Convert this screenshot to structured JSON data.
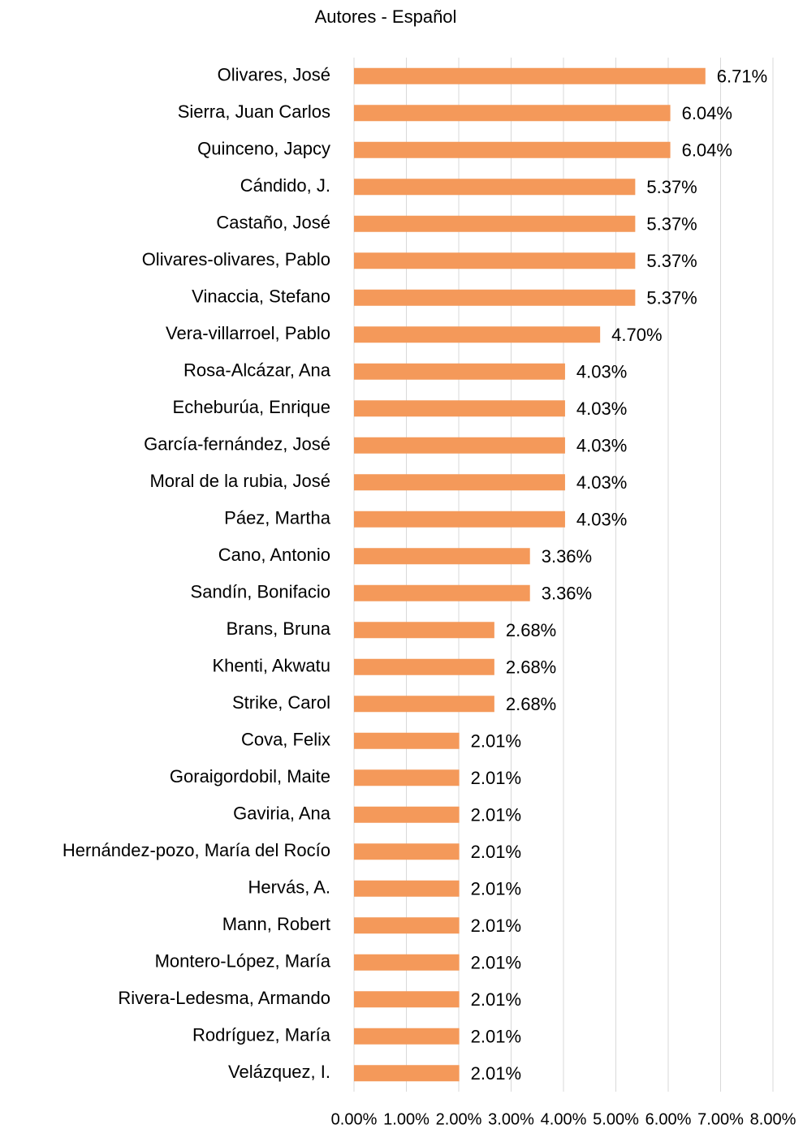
{
  "chart_data": {
    "type": "barh",
    "title": "Autores - Español",
    "categories": [
      "Olivares, José",
      "Sierra, Juan Carlos",
      "Quinceno, Japcy",
      "Cándido, J.",
      "Castaño, José",
      "Olivares-olivares, Pablo",
      "Vinaccia, Stefano",
      "Vera-villarroel, Pablo",
      "Rosa-Alcázar, Ana",
      "Echeburúa, Enrique",
      "García-fernández, José",
      "Moral de la rubia, José",
      "Páez, Martha",
      "Cano, Antonio",
      "Sandín, Bonifacio",
      "Brans, Bruna",
      "Khenti, Akwatu",
      "Strike, Carol",
      "Cova, Felix",
      "Goraigordobil, Maite",
      "Gaviria, Ana",
      "Hernández-pozo, María del Rocío",
      "Hervás, A.",
      "Mann, Robert",
      "Montero-López, María",
      "Rivera-Ledesma, Armando",
      "Rodríguez, María",
      "Velázquez, I."
    ],
    "values": [
      6.71,
      6.04,
      6.04,
      5.37,
      5.37,
      5.37,
      5.37,
      4.7,
      4.03,
      4.03,
      4.03,
      4.03,
      4.03,
      3.36,
      3.36,
      2.68,
      2.68,
      2.68,
      2.01,
      2.01,
      2.01,
      2.01,
      2.01,
      2.01,
      2.01,
      2.01,
      2.01,
      2.01
    ],
    "value_labels": [
      "6.71%",
      "6.04%",
      "6.04%",
      "5.37%",
      "5.37%",
      "5.37%",
      "5.37%",
      "4.70%",
      "4.03%",
      "4.03%",
      "4.03%",
      "4.03%",
      "4.03%",
      "3.36%",
      "3.36%",
      "2.68%",
      "2.68%",
      "2.68%",
      "2.01%",
      "2.01%",
      "2.01%",
      "2.01%",
      "2.01%",
      "2.01%",
      "2.01%",
      "2.01%",
      "2.01%",
      "2.01%"
    ],
    "color": "#f4995a",
    "xlim": [
      0,
      8
    ],
    "xticks": [
      {
        "value": 0,
        "label": "0.00%"
      },
      {
        "value": 1,
        "label": "1.00%"
      },
      {
        "value": 2,
        "label": "2.00%"
      },
      {
        "value": 3,
        "label": "3.00%"
      },
      {
        "value": 4,
        "label": "4.00%"
      },
      {
        "value": 5,
        "label": "5.00%"
      },
      {
        "value": 6,
        "label": "6.00%"
      },
      {
        "value": 7,
        "label": "7.00%"
      },
      {
        "value": 8,
        "label": "8.00%"
      }
    ],
    "grid": true
  }
}
